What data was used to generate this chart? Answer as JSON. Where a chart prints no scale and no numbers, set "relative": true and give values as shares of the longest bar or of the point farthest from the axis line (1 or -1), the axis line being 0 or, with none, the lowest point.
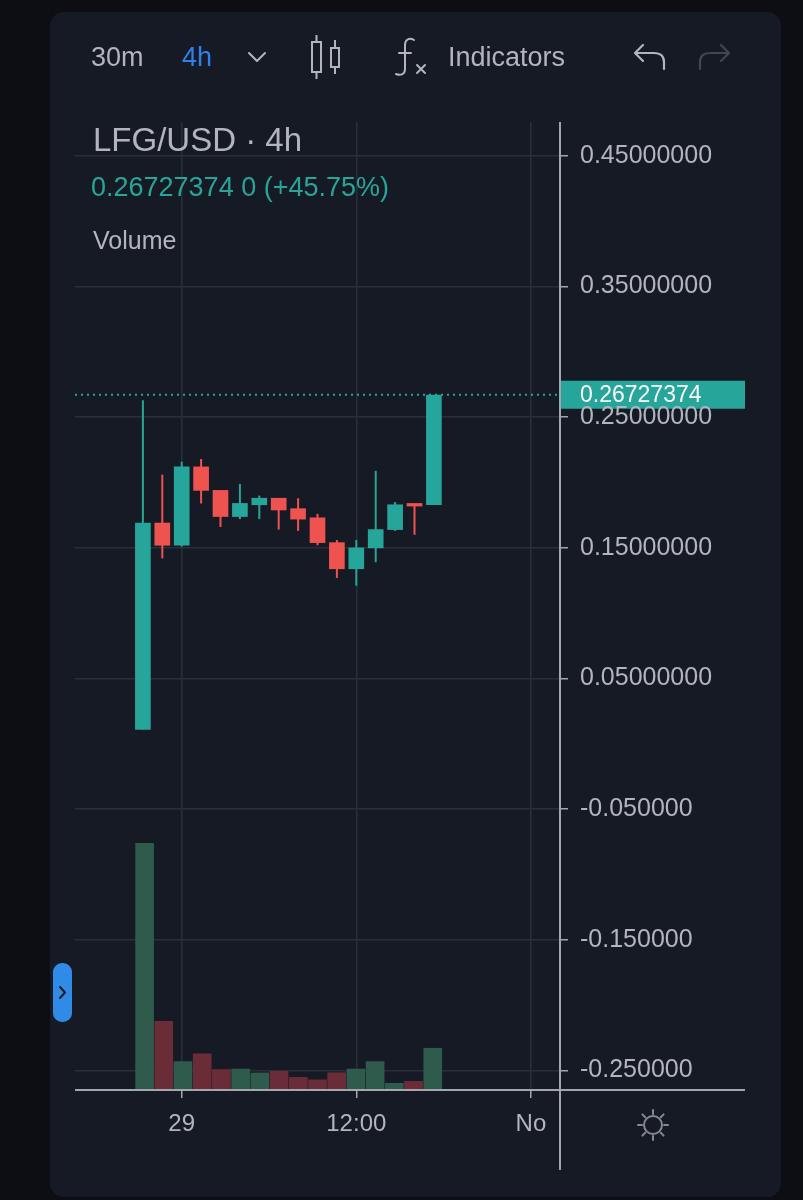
{
  "chart_data": [
    {
      "type": "candlestick",
      "title": "LFG/USD · 4h",
      "subtitle": "0.26727374 0 (+45.75%)",
      "categories": [
        null,
        null,
        null,
        null,
        null,
        "29",
        null,
        null,
        null,
        null,
        null,
        null,
        null,
        null,
        "12:00",
        null,
        null,
        null,
        null,
        null,
        null,
        null,
        null,
        "No",
        null
      ],
      "ohlc": [
        null,
        null,
        null,
        [
          0.011,
          0.263,
          0.011,
          0.169
        ],
        [
          0.169,
          0.206,
          0.142,
          0.152
        ],
        [
          0.152,
          0.216,
          0.151,
          0.212
        ],
        [
          0.212,
          0.218,
          0.184,
          0.194
        ],
        [
          0.194,
          0.194,
          0.166,
          0.174
        ],
        [
          0.174,
          0.199,
          0.172,
          0.184
        ],
        [
          0.183,
          0.19,
          0.172,
          0.188
        ],
        [
          0.188,
          0.188,
          0.164,
          0.179
        ],
        [
          0.18,
          0.188,
          0.163,
          0.172
        ],
        [
          0.173,
          0.176,
          0.152,
          0.154
        ],
        [
          0.154,
          0.156,
          0.127,
          0.134
        ],
        [
          0.134,
          0.156,
          0.121,
          0.15
        ],
        [
          0.15,
          0.209,
          0.139,
          0.164
        ],
        [
          0.164,
          0.185,
          0.163,
          0.183
        ],
        [
          0.184,
          0.184,
          0.16,
          0.182
        ],
        [
          0.183,
          0.267,
          0.183,
          0.267
        ],
        null,
        null,
        null,
        null,
        null,
        null
      ],
      "colors": [
        null,
        null,
        null,
        "#26a69a",
        "#ef5350",
        "#26a69a",
        "#ef5350",
        "#ef5350",
        "#26a69a",
        "#26a69a",
        "#ef5350",
        "#ef5350",
        "#ef5350",
        "#ef5350",
        "#26a69a",
        "#26a69a",
        "#26a69a",
        "#ef5350",
        "#26a69a",
        null,
        null,
        null,
        null,
        null,
        null
      ],
      "ylim": [
        -0.265,
        0.476
      ],
      "yticks": [
        {
          "value": 0.45,
          "label": "0.45000000"
        },
        {
          "value": 0.35,
          "label": "0.35000000"
        },
        {
          "value": 0.25,
          "label": "0.25000000"
        },
        {
          "value": 0.15,
          "label": "0.15000000"
        },
        {
          "value": 0.05,
          "label": "0.05000000"
        },
        {
          "value": -0.05,
          "label": "-0.050000"
        },
        {
          "value": -0.15,
          "label": "-0.150000"
        },
        {
          "value": -0.25,
          "label": "-0.250000"
        }
      ],
      "grid": true,
      "ref_lines": [
        {
          "axis": "y",
          "value": 0.26727374,
          "label": "0.26727374",
          "color": "#26a69a",
          "line_style": "dotted"
        }
      ],
      "annotations": [
        "30m",
        "4h",
        "Indicators"
      ]
    },
    {
      "type": "bar",
      "title": "Volume",
      "relative": true,
      "categories": [
        null,
        null,
        null,
        null,
        null,
        null,
        null,
        null,
        null,
        null,
        null,
        null,
        null,
        null,
        null,
        null,
        null,
        null,
        null,
        null,
        null,
        null,
        null,
        null,
        null
      ],
      "values": [
        null,
        null,
        null,
        1,
        0.278,
        0.115,
        0.146,
        0.083,
        0.085,
        0.069,
        0.076,
        0.051,
        0.041,
        0.07,
        0.085,
        0.115,
        0.027,
        0.035,
        0.169,
        null,
        null,
        null,
        null,
        null,
        null
      ],
      "colors": [
        null,
        null,
        null,
        "#2e5b4c",
        "#6a2d38",
        "#2e5b4c",
        "#6a2d38",
        "#6a2d38",
        "#2e5b4c",
        "#2e5b4c",
        "#6a2d38",
        "#6a2d38",
        "#6a2d38",
        "#6a2d38",
        "#2e5b4c",
        "#2e5b4c",
        "#2e5b4c",
        "#6a2d38",
        "#2e5b4c",
        null,
        null,
        null,
        null,
        null,
        null
      ]
    }
  ]
}
